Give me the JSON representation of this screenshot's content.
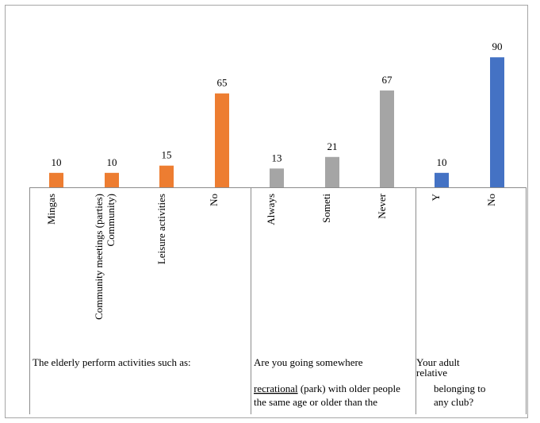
{
  "chart_data": {
    "type": "bar",
    "title": "",
    "xlabel": "",
    "ylabel": "",
    "ylim": [
      0,
      100
    ],
    "grid": false,
    "legend": "none",
    "groups": [
      {
        "name": "activities",
        "label_lines": [
          "The elderly perform activities such as:"
        ],
        "bars": [
          {
            "category_lines": [
              "Mingas"
            ],
            "value": 10,
            "color": "#ed7d31"
          },
          {
            "category_lines": [
              "Community meetings (parties)",
              "Community)"
            ],
            "value": 10,
            "color": "#ed7d31"
          },
          {
            "category_lines": [
              "Leisure activities"
            ],
            "value": 15,
            "color": "#ed7d31"
          },
          {
            "category_lines": [
              "No"
            ],
            "value": 65,
            "color": "#ed7d31"
          }
        ]
      },
      {
        "name": "recreational",
        "label_lines": [
          "Are you going somewhere",
          "recrational (park) with older people",
          "the same age or older than the"
        ],
        "bars": [
          {
            "category_lines": [
              "Always"
            ],
            "value": 13,
            "color": "#a5a5a5"
          },
          {
            "category_lines": [
              "Someti"
            ],
            "value": 21,
            "color": "#a5a5a5"
          },
          {
            "category_lines": [
              "Never"
            ],
            "value": 67,
            "color": "#a5a5a5"
          }
        ]
      },
      {
        "name": "club",
        "label_lines": [
          "Your adult",
          "relative",
          "belonging to",
          "any club?"
        ],
        "bars": [
          {
            "category_lines": [
              "Y"
            ],
            "value": 10,
            "color": "#4472c4"
          },
          {
            "category_lines": [
              "No"
            ],
            "value": 90,
            "color": "#4472c4"
          }
        ]
      }
    ]
  }
}
